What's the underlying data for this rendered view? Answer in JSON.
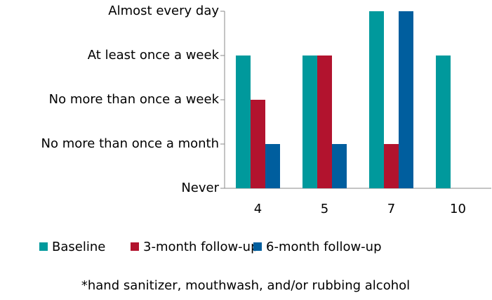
{
  "chart_data": {
    "type": "bar",
    "categories": [
      "4",
      "5",
      "7",
      "10"
    ],
    "series": [
      {
        "name": "Baseline",
        "color": "#00999c",
        "values": [
          3,
          3,
          4,
          3
        ]
      },
      {
        "name": "3-month follow-up",
        "color": "#b2132e",
        "values": [
          2,
          3,
          1,
          0
        ]
      },
      {
        "name": "6-month follow-up",
        "color": "#005e9e",
        "values": [
          1,
          1,
          4,
          0
        ]
      }
    ],
    "ylim": [
      0,
      4
    ],
    "yticks": [
      {
        "value": 0,
        "label": "Never"
      },
      {
        "value": 1,
        "label": "No more than once a month"
      },
      {
        "value": 2,
        "label": "No more than once a week"
      },
      {
        "value": 3,
        "label": "At least once a week"
      },
      {
        "value": 4,
        "label": "Almost every day"
      }
    ],
    "note": "*hand sanitizer, mouthwash, and/or rubbing alcohol",
    "legend": "bottom"
  }
}
